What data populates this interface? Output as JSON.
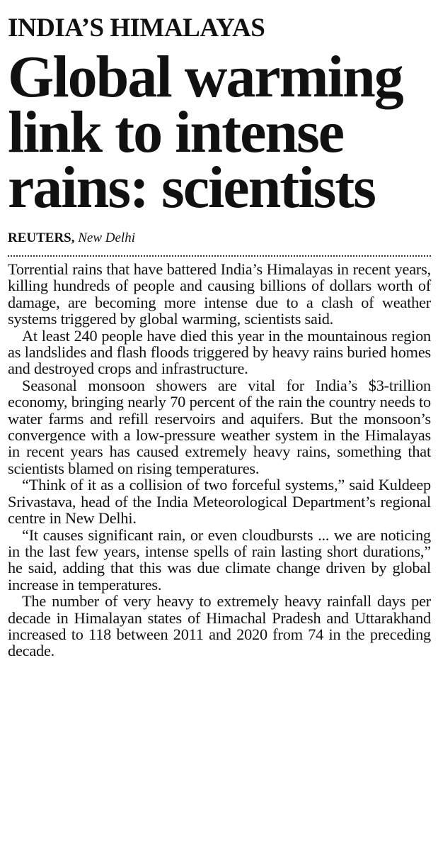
{
  "article": {
    "kicker": "INDIA’S HIMALAYAS",
    "headline": "Global warming link to intense rains: scientists",
    "byline": {
      "agency": "REUTERS,",
      "location": "New Delhi"
    },
    "paragraphs": [
      "Torrential rains that have battered India’s Himalayas in recent years, killing hundreds of people and causing billions of dollars worth of damage, are becoming more intense due to a clash of weather systems triggered by global warming, scientists said.",
      "At least 240 people have died this year in the mountainous region as landslides and flash floods triggered by heavy rains buried homes and destroyed crops and infrastructure.",
      "Seasonal monsoon showers are vital for India’s $3-trillion economy, bringing nearly 70 percent of the rain the country needs to water farms and refill reservoirs and aquifers. But the monsoon’s convergence with a low-pressure weather system in the Himalayas in recent years has caused extremely heavy rains, something that scientists blamed on rising temperatures.",
      "“Think of it as a collision of two forceful systems,” said Kuldeep Srivastava, head of the India Meteorological Department’s regional centre in New Delhi.",
      "“It causes significant rain, or even cloudbursts ... we are noticing in the last few years, intense spells of rain lasting short durations,” he said, adding that this was due climate change driven by global increase in temperatures.",
      "The number of very heavy to extremely heavy rainfall days per decade in Himalayan states of Himachal Pradesh and Uttarakhand increased to 118 between 2011 and 2020 from 74 in the preceding decade."
    ]
  }
}
